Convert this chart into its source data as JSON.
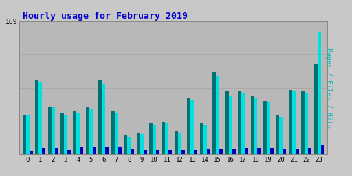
{
  "title": "Hourly usage for February 2019",
  "hours": [
    0,
    1,
    2,
    3,
    4,
    5,
    6,
    7,
    8,
    9,
    10,
    11,
    12,
    13,
    14,
    15,
    16,
    17,
    18,
    19,
    20,
    21,
    22,
    23
  ],
  "pages": [
    50,
    95,
    60,
    52,
    55,
    60,
    95,
    55,
    25,
    28,
    40,
    42,
    30,
    72,
    40,
    105,
    80,
    80,
    75,
    68,
    50,
    82,
    80,
    115
  ],
  "files": [
    50,
    92,
    60,
    50,
    52,
    58,
    90,
    52,
    22,
    26,
    38,
    40,
    28,
    70,
    38,
    100,
    75,
    78,
    72,
    66,
    48,
    80,
    78,
    155
  ],
  "hits": [
    5,
    8,
    8,
    6,
    10,
    10,
    10,
    10,
    7,
    6,
    6,
    6,
    6,
    6,
    7,
    7,
    7,
    9,
    9,
    9,
    7,
    7,
    9,
    12
  ],
  "pages_color": "#007070",
  "files_color": "#00e0e0",
  "hits_color": "#0000bb",
  "bg_color": "#c8c8c8",
  "plot_bg": "#b8b8b8",
  "title_color": "#0000cc",
  "ylabel_color": "#00bbbb",
  "ylabel_text": "Pages / Files / Hits",
  "ymax": 169,
  "ytick_label": "169",
  "grid_color": "#aaaaaa",
  "border_color": "#888888"
}
